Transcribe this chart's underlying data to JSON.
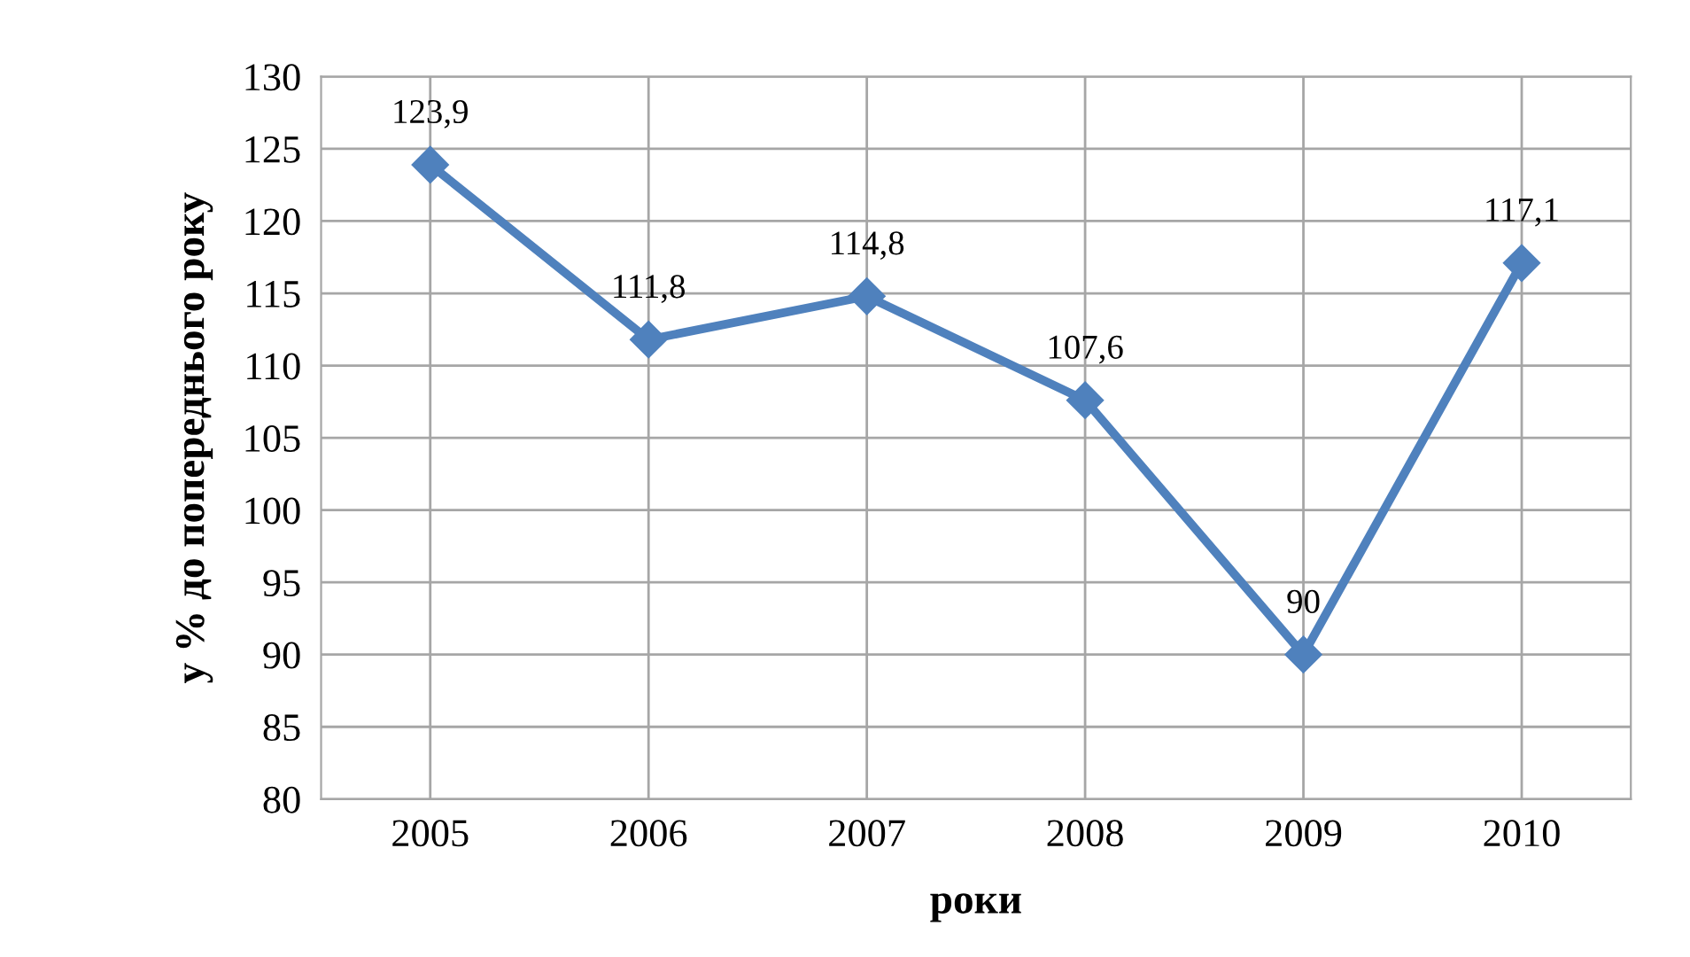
{
  "chart_data": {
    "type": "line",
    "xlabel": "роки",
    "ylabel": "у % до попереднього року",
    "categories": [
      "2005",
      "2006",
      "2007",
      "2008",
      "2009",
      "2010"
    ],
    "series": [
      {
        "color": "#4f81bd",
        "values": [
          123.9,
          111.8,
          114.8,
          107.6,
          90,
          117.1
        ],
        "value_labels": [
          "123,9",
          "111,8",
          "114,8",
          "107,6",
          "90",
          "117,1"
        ]
      }
    ],
    "ylim": [
      80,
      130
    ],
    "yticks": [
      80,
      85,
      90,
      95,
      100,
      105,
      110,
      115,
      120,
      125,
      130
    ],
    "grid": true,
    "marker": "diamond",
    "line_style": "solid",
    "legend": false
  }
}
